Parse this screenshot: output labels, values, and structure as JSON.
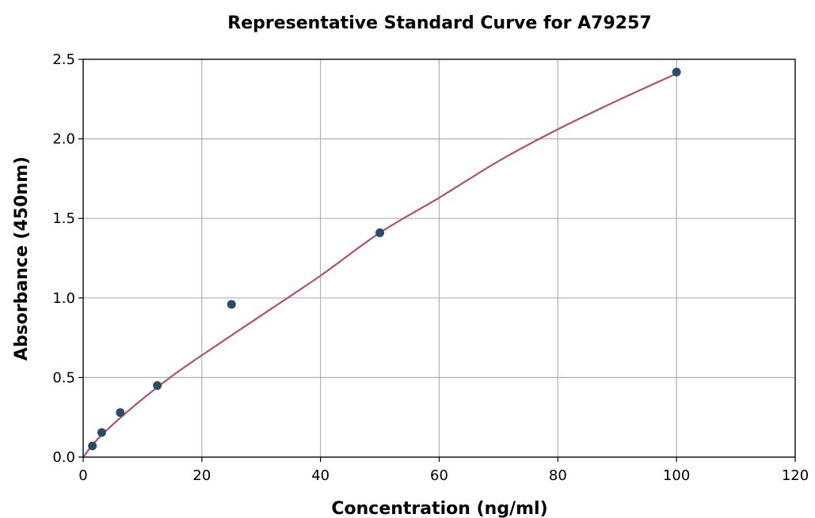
{
  "chart_data": {
    "type": "scatter",
    "title": "Representative Standard Curve for A79257",
    "xlabel": "Concentration (ng/ml)",
    "ylabel": "Absorbance (450nm)",
    "xlim": [
      0,
      120
    ],
    "ylim": [
      0,
      2.5
    ],
    "xticks": [
      0,
      20,
      40,
      60,
      80,
      100,
      120
    ],
    "yticks": [
      0.0,
      0.5,
      1.0,
      1.5,
      2.0,
      2.5
    ],
    "xtick_labels": [
      "0",
      "20",
      "40",
      "60",
      "80",
      "100",
      "120"
    ],
    "ytick_labels": [
      "0.0",
      "0.5",
      "1.0",
      "1.5",
      "2.0",
      "2.5"
    ],
    "grid": true,
    "series": [
      {
        "kind": "points",
        "x": [
          1.56,
          3.13,
          6.25,
          12.5,
          25,
          50,
          100
        ],
        "y": [
          0.07,
          0.155,
          0.28,
          0.45,
          0.96,
          1.41,
          2.42
        ],
        "color": "#2e4a6b"
      },
      {
        "kind": "fit-curve",
        "x": [
          0,
          2,
          5,
          10,
          15,
          20,
          30,
          40,
          50,
          60,
          70,
          80,
          90,
          100
        ],
        "y": [
          0.0,
          0.095,
          0.205,
          0.365,
          0.51,
          0.64,
          0.89,
          1.14,
          1.41,
          1.63,
          1.86,
          2.06,
          2.24,
          2.41
        ],
        "color": "#b05070"
      }
    ]
  }
}
